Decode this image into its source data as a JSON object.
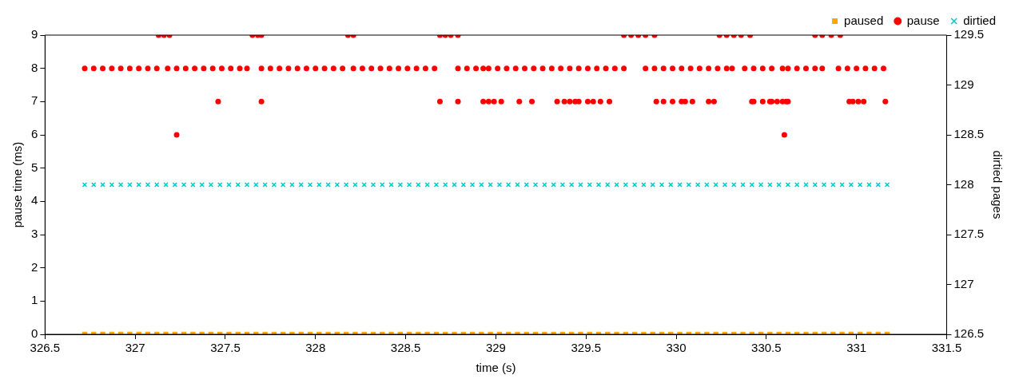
{
  "chart_data": {
    "type": "scatter",
    "xlabel": "time (s)",
    "ylabel": "pause time (ms)",
    "y2label": "dirtied pages",
    "xlim": [
      326.5,
      331.5
    ],
    "xticks": [
      326.5,
      327,
      327.5,
      328,
      328.5,
      329,
      329.5,
      330,
      330.5,
      331,
      331.5
    ],
    "ylim": [
      0,
      9
    ],
    "yticks": [
      0,
      1,
      2,
      3,
      4,
      5,
      6,
      7,
      8,
      9
    ],
    "y2lim": [
      126.5,
      129.5
    ],
    "y2ticks": [
      126.5,
      127,
      127.5,
      128,
      128.5,
      129,
      129.5
    ],
    "grid": false,
    "legend": "top right",
    "x": [
      326.72,
      326.77,
      326.82,
      326.87,
      326.92,
      326.97,
      327.02,
      327.07,
      327.12,
      327.17,
      327.22,
      327.27,
      327.32,
      327.37,
      327.42,
      327.47,
      327.52,
      327.57,
      327.62,
      327.67,
      327.72,
      327.77,
      327.82,
      327.87,
      327.92,
      327.97,
      328.02,
      328.07,
      328.12,
      328.17,
      328.22,
      328.27,
      328.32,
      328.37,
      328.42,
      328.47,
      328.52,
      328.57,
      328.62,
      328.67,
      328.72,
      328.77,
      328.82,
      328.87,
      328.92,
      328.97,
      329.02,
      329.07,
      329.12,
      329.17,
      329.22,
      329.27,
      329.32,
      329.37,
      329.42,
      329.47,
      329.52,
      329.57,
      329.62,
      329.67,
      329.72,
      329.77,
      329.82,
      329.87,
      329.92,
      329.97,
      330.02,
      330.07,
      330.12,
      330.17,
      330.22,
      330.27,
      330.32,
      330.37,
      330.42,
      330.47,
      330.52,
      330.57,
      330.62,
      330.67,
      330.72,
      330.77,
      330.82,
      330.87,
      330.92,
      330.97,
      331.02,
      331.07,
      331.12,
      331.17
    ],
    "series": [
      {
        "name": "paused",
        "color": "#ffa500",
        "marker": "square",
        "values": [
          0,
          0,
          0,
          0,
          0,
          0,
          0,
          0,
          0,
          0,
          0,
          0,
          0,
          0,
          0,
          0,
          0,
          0,
          0,
          0,
          0,
          0,
          0,
          0,
          0,
          0,
          0,
          0,
          0,
          0,
          0,
          0,
          0,
          0,
          0,
          0,
          0,
          0,
          0,
          0,
          0,
          0,
          0,
          0,
          0,
          0,
          0,
          0,
          0,
          0,
          0,
          0,
          0,
          0,
          0,
          0,
          0,
          0,
          0,
          0,
          0,
          0,
          0,
          0,
          0,
          0,
          0,
          0,
          0,
          0,
          0,
          0,
          0,
          0,
          0,
          0,
          0,
          0,
          0,
          0,
          0,
          0,
          0,
          0,
          0,
          0,
          0,
          0,
          0,
          0
        ]
      },
      {
        "name": "pause",
        "color": "#ff0000",
        "marker": "circle",
        "x": [
          326.72,
          326.77,
          326.82,
          326.87,
          326.92,
          326.97,
          327.02,
          327.07,
          327.12,
          327.18,
          327.23,
          327.28,
          327.33,
          327.38,
          327.43,
          327.48,
          327.53,
          327.58,
          327.62,
          327.7,
          327.75,
          327.8,
          327.85,
          327.9,
          327.95,
          328.0,
          328.05,
          328.1,
          328.15,
          328.21,
          328.26,
          328.31,
          328.36,
          328.41,
          328.46,
          328.51,
          328.56,
          328.61,
          328.66,
          328.79,
          328.84,
          328.89,
          328.93,
          328.96,
          329.01,
          329.06,
          329.11,
          329.16,
          329.21,
          329.26,
          329.31,
          329.36,
          329.41,
          329.46,
          329.51,
          329.56,
          329.61,
          329.66,
          329.71,
          329.83,
          329.88,
          329.93,
          329.98,
          330.03,
          330.08,
          330.13,
          330.18,
          330.23,
          330.28,
          330.31,
          330.38,
          330.43,
          330.48,
          330.53,
          330.59,
          330.62,
          330.67,
          330.72,
          330.77,
          330.81,
          330.9,
          330.95,
          331.0,
          331.05,
          331.1,
          331.15,
          327.13,
          327.16,
          327.19,
          327.65,
          327.68,
          327.7,
          328.18,
          328.21,
          328.69,
          328.72,
          328.75,
          328.79,
          329.71,
          329.75,
          329.79,
          329.83,
          329.88,
          330.24,
          330.28,
          330.32,
          330.36,
          330.41,
          330.77,
          330.81,
          330.86,
          330.91,
          327.46,
          327.7,
          328.69,
          328.79,
          328.93,
          328.96,
          328.99,
          329.03,
          329.13,
          329.2,
          329.34,
          329.38,
          329.41,
          329.44,
          329.46,
          329.51,
          329.54,
          329.58,
          329.63,
          329.89,
          329.93,
          329.98,
          330.03,
          330.05,
          330.09,
          330.18,
          330.21,
          330.42,
          330.43,
          330.48,
          330.52,
          330.53,
          330.56,
          330.59,
          330.61,
          330.62,
          330.96,
          330.98,
          331.01,
          331.04,
          331.16,
          327.23,
          330.6
        ],
        "values": [
          8,
          8,
          8,
          8,
          8,
          8,
          8,
          8,
          8,
          8,
          8,
          8,
          8,
          8,
          8,
          8,
          8,
          8,
          8,
          8,
          8,
          8,
          8,
          8,
          8,
          8,
          8,
          8,
          8,
          8,
          8,
          8,
          8,
          8,
          8,
          8,
          8,
          8,
          8,
          8,
          8,
          8,
          8,
          8,
          8,
          8,
          8,
          8,
          8,
          8,
          8,
          8,
          8,
          8,
          8,
          8,
          8,
          8,
          8,
          8,
          8,
          8,
          8,
          8,
          8,
          8,
          8,
          8,
          8,
          8,
          8,
          8,
          8,
          8,
          8,
          8,
          8,
          8,
          8,
          8,
          8,
          8,
          8,
          8,
          8,
          8,
          9,
          9,
          9,
          9,
          9,
          9,
          9,
          9,
          9,
          9,
          9,
          9,
          9,
          9,
          9,
          9,
          9,
          9,
          9,
          9,
          9,
          9,
          9,
          9,
          9,
          9,
          7,
          7,
          7,
          7,
          7,
          7,
          7,
          7,
          7,
          7,
          7,
          7,
          7,
          7,
          7,
          7,
          7,
          7,
          7,
          7,
          7,
          7,
          7,
          7,
          7,
          7,
          7,
          7,
          7,
          7,
          7,
          7,
          7,
          7,
          7,
          7,
          7,
          7,
          7,
          7,
          7,
          6,
          6
        ]
      },
      {
        "name": "dirtied",
        "color": "#00c8c8",
        "marker": "cross",
        "axis": "y2",
        "values": [
          128,
          128,
          128,
          128,
          128,
          128,
          128,
          128,
          128,
          128,
          128,
          128,
          128,
          128,
          128,
          128,
          128,
          128,
          128,
          128,
          128,
          128,
          128,
          128,
          128,
          128,
          128,
          128,
          128,
          128,
          128,
          128,
          128,
          128,
          128,
          128,
          128,
          128,
          128,
          128,
          128,
          128,
          128,
          128,
          128,
          128,
          128,
          128,
          128,
          128,
          128,
          128,
          128,
          128,
          128,
          128,
          128,
          128,
          128,
          128,
          128,
          128,
          128,
          128,
          128,
          128,
          128,
          128,
          128,
          128,
          128,
          128,
          128,
          128,
          128,
          128,
          128,
          128,
          128,
          128,
          128,
          128,
          128,
          128,
          128,
          128,
          128,
          128,
          128,
          128
        ]
      }
    ]
  }
}
